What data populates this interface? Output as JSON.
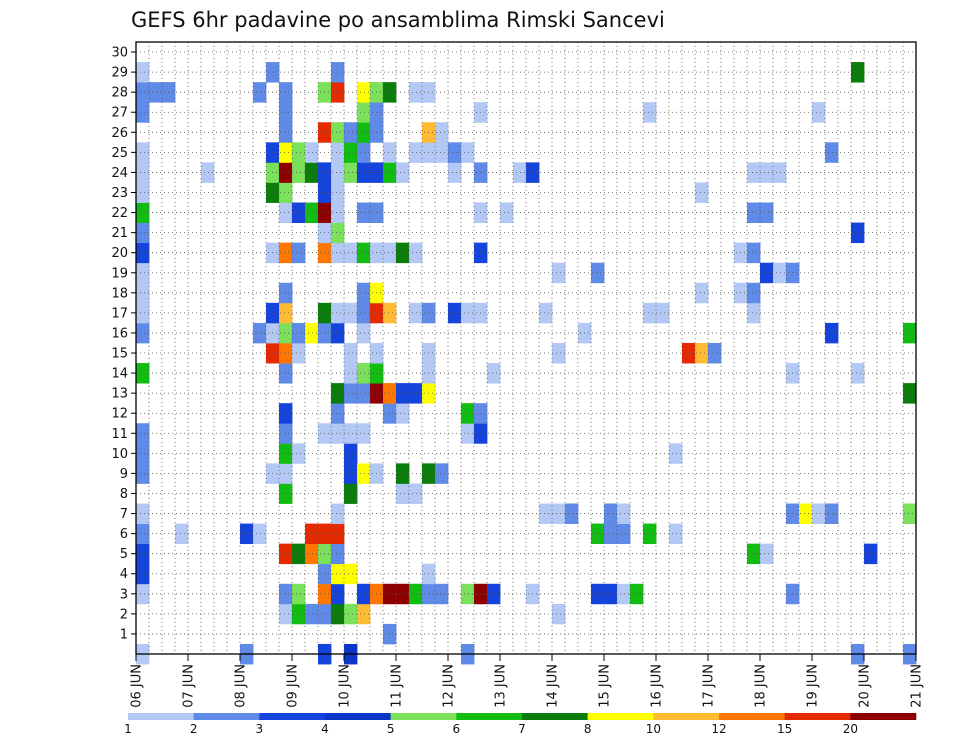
{
  "chart_data": {
    "type": "heatmap",
    "title": "GEFS 6hr padavine po ansamblima Rimski Sancevi",
    "xlabel": "",
    "ylabel": "",
    "x_ticks": [
      "06 JUN",
      "07 JUN",
      "08 JUN",
      "09 JUN",
      "10 JUN",
      "11 JUN",
      "12 JUN",
      "13 JUN",
      "14 JUN",
      "15 JUN",
      "16 JUN",
      "17 JUN",
      "18 JUN",
      "19 JUN",
      "20 JUN",
      "21 JUN"
    ],
    "y_ticks": [
      "1",
      "2",
      "3",
      "4",
      "5",
      "6",
      "7",
      "8",
      "9",
      "10",
      "11",
      "12",
      "13",
      "14",
      "15",
      "16",
      "17",
      "18",
      "19",
      "20",
      "21",
      "22",
      "23",
      "24",
      "25",
      "26",
      "27",
      "28",
      "29",
      "30"
    ],
    "xlim": [
      0,
      60
    ],
    "ylim": [
      0,
      30
    ],
    "x_unit": "6-hour steps from 06 JUN 00Z",
    "y_unit": "ensemble member",
    "grid": true,
    "colorbar": {
      "labels": [
        "1",
        "2",
        "3",
        "4",
        "5",
        "6",
        "7",
        "8",
        "10",
        "12",
        "15",
        "20"
      ],
      "colors": [
        "#b4c8f5",
        "#5f8ae8",
        "#1444dc",
        "#0c36c8",
        "#7be05a",
        "#11bd11",
        "#0b7d0b",
        "#ffff00",
        "#ffbb33",
        "#ff7700",
        "#e62a00",
        "#8e0000"
      ]
    },
    "cells": [
      [
        0,
        0,
        1
      ],
      [
        8,
        0,
        2
      ],
      [
        14,
        0,
        3
      ],
      [
        16,
        0,
        4
      ],
      [
        25,
        0,
        2
      ],
      [
        55,
        0,
        2
      ],
      [
        59,
        0,
        2
      ],
      [
        19,
        1,
        2
      ],
      [
        11,
        2,
        1
      ],
      [
        12,
        2,
        6
      ],
      [
        13,
        2,
        2
      ],
      [
        14,
        2,
        2
      ],
      [
        15,
        2,
        7
      ],
      [
        16,
        2,
        5
      ],
      [
        17,
        2,
        9
      ],
      [
        32,
        2,
        1
      ],
      [
        0,
        3,
        1
      ],
      [
        11,
        3,
        2
      ],
      [
        12,
        3,
        5
      ],
      [
        14,
        3,
        10
      ],
      [
        15,
        3,
        3
      ],
      [
        17,
        3,
        3
      ],
      [
        18,
        3,
        10
      ],
      [
        19,
        3,
        12
      ],
      [
        20,
        3,
        12
      ],
      [
        21,
        3,
        6
      ],
      [
        22,
        3,
        2
      ],
      [
        23,
        3,
        2
      ],
      [
        25,
        3,
        5
      ],
      [
        26,
        3,
        12
      ],
      [
        27,
        3,
        3
      ],
      [
        30,
        3,
        1
      ],
      [
        35,
        3,
        3
      ],
      [
        36,
        3,
        3
      ],
      [
        37,
        3,
        1
      ],
      [
        38,
        3,
        6
      ],
      [
        50,
        3,
        2
      ],
      [
        0,
        4,
        3
      ],
      [
        14,
        4,
        2
      ],
      [
        15,
        4,
        8
      ],
      [
        16,
        4,
        8
      ],
      [
        22,
        4,
        1
      ],
      [
        0,
        5,
        3
      ],
      [
        11,
        5,
        11
      ],
      [
        12,
        5,
        7
      ],
      [
        13,
        5,
        10
      ],
      [
        14,
        5,
        5
      ],
      [
        15,
        5,
        2
      ],
      [
        47,
        5,
        6
      ],
      [
        48,
        5,
        1
      ],
      [
        56,
        5,
        3
      ],
      [
        0,
        6,
        2
      ],
      [
        3,
        6,
        1
      ],
      [
        8,
        6,
        3
      ],
      [
        9,
        6,
        1
      ],
      [
        13,
        6,
        11
      ],
      [
        14,
        6,
        11
      ],
      [
        15,
        6,
        11
      ],
      [
        35,
        6,
        6
      ],
      [
        36,
        6,
        2
      ],
      [
        37,
        6,
        2
      ],
      [
        39,
        6,
        6
      ],
      [
        41,
        6,
        1
      ],
      [
        0,
        7,
        1
      ],
      [
        15,
        7,
        1
      ],
      [
        31,
        7,
        1
      ],
      [
        32,
        7,
        1
      ],
      [
        33,
        7,
        2
      ],
      [
        36,
        7,
        2
      ],
      [
        37,
        7,
        1
      ],
      [
        50,
        7,
        2
      ],
      [
        51,
        7,
        8
      ],
      [
        52,
        7,
        1
      ],
      [
        53,
        7,
        2
      ],
      [
        59,
        7,
        5
      ],
      [
        11,
        8,
        6
      ],
      [
        16,
        8,
        7
      ],
      [
        20,
        8,
        1
      ],
      [
        21,
        8,
        1
      ],
      [
        0,
        9,
        2
      ],
      [
        10,
        9,
        1
      ],
      [
        11,
        9,
        1
      ],
      [
        16,
        9,
        3
      ],
      [
        17,
        9,
        8
      ],
      [
        18,
        9,
        1
      ],
      [
        20,
        9,
        7
      ],
      [
        22,
        9,
        7
      ],
      [
        23,
        9,
        2
      ],
      [
        0,
        10,
        2
      ],
      [
        11,
        10,
        6
      ],
      [
        12,
        10,
        1
      ],
      [
        16,
        10,
        3
      ],
      [
        41,
        10,
        1
      ],
      [
        0,
        11,
        2
      ],
      [
        11,
        11,
        2
      ],
      [
        14,
        11,
        1
      ],
      [
        15,
        11,
        1
      ],
      [
        16,
        11,
        1
      ],
      [
        17,
        11,
        1
      ],
      [
        25,
        11,
        1
      ],
      [
        26,
        11,
        3
      ],
      [
        11,
        12,
        3
      ],
      [
        15,
        12,
        2
      ],
      [
        19,
        12,
        2
      ],
      [
        20,
        12,
        1
      ],
      [
        25,
        12,
        6
      ],
      [
        26,
        12,
        2
      ],
      [
        15,
        13,
        7
      ],
      [
        16,
        13,
        2
      ],
      [
        17,
        13,
        2
      ],
      [
        18,
        13,
        12
      ],
      [
        19,
        13,
        10
      ],
      [
        20,
        13,
        3
      ],
      [
        21,
        13,
        3
      ],
      [
        22,
        13,
        8
      ],
      [
        59,
        13,
        7
      ],
      [
        0,
        14,
        6
      ],
      [
        11,
        14,
        2
      ],
      [
        16,
        14,
        1
      ],
      [
        17,
        14,
        5
      ],
      [
        18,
        14,
        6
      ],
      [
        22,
        14,
        1
      ],
      [
        27,
        14,
        1
      ],
      [
        50,
        14,
        1
      ],
      [
        55,
        14,
        1
      ],
      [
        10,
        15,
        11
      ],
      [
        11,
        15,
        10
      ],
      [
        12,
        15,
        1
      ],
      [
        16,
        15,
        1
      ],
      [
        18,
        15,
        1
      ],
      [
        22,
        15,
        1
      ],
      [
        32,
        15,
        1
      ],
      [
        42,
        15,
        11
      ],
      [
        43,
        15,
        9
      ],
      [
        44,
        15,
        2
      ],
      [
        0,
        16,
        2
      ],
      [
        9,
        16,
        2
      ],
      [
        10,
        16,
        1
      ],
      [
        11,
        16,
        5
      ],
      [
        12,
        16,
        2
      ],
      [
        13,
        16,
        8
      ],
      [
        14,
        16,
        2
      ],
      [
        15,
        16,
        3
      ],
      [
        17,
        16,
        1
      ],
      [
        34,
        16,
        1
      ],
      [
        53,
        16,
        3
      ],
      [
        59,
        16,
        6
      ],
      [
        0,
        17,
        1
      ],
      [
        10,
        17,
        3
      ],
      [
        11,
        17,
        9
      ],
      [
        14,
        17,
        7
      ],
      [
        15,
        17,
        1
      ],
      [
        16,
        17,
        1
      ],
      [
        17,
        17,
        2
      ],
      [
        18,
        17,
        11
      ],
      [
        19,
        17,
        9
      ],
      [
        21,
        17,
        1
      ],
      [
        22,
        17,
        2
      ],
      [
        24,
        17,
        3
      ],
      [
        25,
        17,
        1
      ],
      [
        26,
        17,
        1
      ],
      [
        31,
        17,
        1
      ],
      [
        39,
        17,
        1
      ],
      [
        40,
        17,
        1
      ],
      [
        47,
        17,
        1
      ],
      [
        0,
        18,
        1
      ],
      [
        11,
        18,
        2
      ],
      [
        17,
        18,
        2
      ],
      [
        18,
        18,
        8
      ],
      [
        43,
        18,
        1
      ],
      [
        46,
        18,
        1
      ],
      [
        47,
        18,
        2
      ],
      [
        0,
        19,
        1
      ],
      [
        32,
        19,
        1
      ],
      [
        35,
        19,
        2
      ],
      [
        48,
        19,
        3
      ],
      [
        49,
        19,
        1
      ],
      [
        50,
        19,
        2
      ],
      [
        0,
        20,
        3
      ],
      [
        10,
        20,
        1
      ],
      [
        11,
        20,
        10
      ],
      [
        12,
        20,
        2
      ],
      [
        14,
        20,
        10
      ],
      [
        15,
        20,
        1
      ],
      [
        16,
        20,
        1
      ],
      [
        17,
        20,
        6
      ],
      [
        18,
        20,
        1
      ],
      [
        19,
        20,
        1
      ],
      [
        20,
        20,
        7
      ],
      [
        21,
        20,
        1
      ],
      [
        26,
        20,
        3
      ],
      [
        46,
        20,
        1
      ],
      [
        47,
        20,
        2
      ],
      [
        0,
        21,
        2
      ],
      [
        14,
        21,
        1
      ],
      [
        15,
        21,
        5
      ],
      [
        55,
        21,
        3
      ],
      [
        0,
        22,
        6
      ],
      [
        11,
        22,
        1
      ],
      [
        12,
        22,
        3
      ],
      [
        13,
        22,
        6
      ],
      [
        14,
        22,
        12
      ],
      [
        15,
        22,
        1
      ],
      [
        17,
        22,
        2
      ],
      [
        18,
        22,
        2
      ],
      [
        26,
        22,
        1
      ],
      [
        28,
        22,
        1
      ],
      [
        47,
        22,
        2
      ],
      [
        48,
        22,
        2
      ],
      [
        0,
        23,
        1
      ],
      [
        10,
        23,
        7
      ],
      [
        11,
        23,
        5
      ],
      [
        14,
        23,
        3
      ],
      [
        15,
        23,
        1
      ],
      [
        43,
        23,
        1
      ],
      [
        0,
        24,
        1
      ],
      [
        5,
        24,
        1
      ],
      [
        10,
        24,
        5
      ],
      [
        11,
        24,
        12
      ],
      [
        12,
        24,
        5
      ],
      [
        13,
        24,
        7
      ],
      [
        14,
        24,
        3
      ],
      [
        15,
        24,
        1
      ],
      [
        16,
        24,
        5
      ],
      [
        17,
        24,
        3
      ],
      [
        18,
        24,
        3
      ],
      [
        19,
        24,
        6
      ],
      [
        20,
        24,
        1
      ],
      [
        24,
        24,
        1
      ],
      [
        26,
        24,
        2
      ],
      [
        29,
        24,
        1
      ],
      [
        30,
        24,
        3
      ],
      [
        47,
        24,
        1
      ],
      [
        48,
        24,
        1
      ],
      [
        49,
        24,
        1
      ],
      [
        0,
        25,
        1
      ],
      [
        10,
        25,
        3
      ],
      [
        11,
        25,
        8
      ],
      [
        12,
        25,
        5
      ],
      [
        13,
        25,
        1
      ],
      [
        15,
        25,
        1
      ],
      [
        16,
        25,
        6
      ],
      [
        17,
        25,
        2
      ],
      [
        19,
        25,
        1
      ],
      [
        21,
        25,
        1
      ],
      [
        22,
        25,
        1
      ],
      [
        23,
        25,
        1
      ],
      [
        24,
        25,
        2
      ],
      [
        25,
        25,
        1
      ],
      [
        53,
        25,
        2
      ],
      [
        11,
        26,
        2
      ],
      [
        14,
        26,
        11
      ],
      [
        15,
        26,
        5
      ],
      [
        16,
        26,
        2
      ],
      [
        17,
        26,
        6
      ],
      [
        18,
        26,
        2
      ],
      [
        22,
        26,
        9
      ],
      [
        23,
        26,
        1
      ],
      [
        0,
        27,
        2
      ],
      [
        11,
        27,
        2
      ],
      [
        17,
        27,
        5
      ],
      [
        18,
        27,
        2
      ],
      [
        26,
        27,
        1
      ],
      [
        39,
        27,
        1
      ],
      [
        52,
        27,
        1
      ],
      [
        0,
        28,
        2
      ],
      [
        1,
        28,
        2
      ],
      [
        2,
        28,
        2
      ],
      [
        9,
        28,
        2
      ],
      [
        11,
        28,
        2
      ],
      [
        14,
        28,
        5
      ],
      [
        15,
        28,
        11
      ],
      [
        17,
        28,
        8
      ],
      [
        18,
        28,
        5
      ],
      [
        19,
        28,
        7
      ],
      [
        21,
        28,
        1
      ],
      [
        22,
        28,
        1
      ],
      [
        0,
        29,
        1
      ],
      [
        10,
        29,
        2
      ],
      [
        15,
        29,
        2
      ],
      [
        55,
        29,
        7
      ]
    ]
  }
}
